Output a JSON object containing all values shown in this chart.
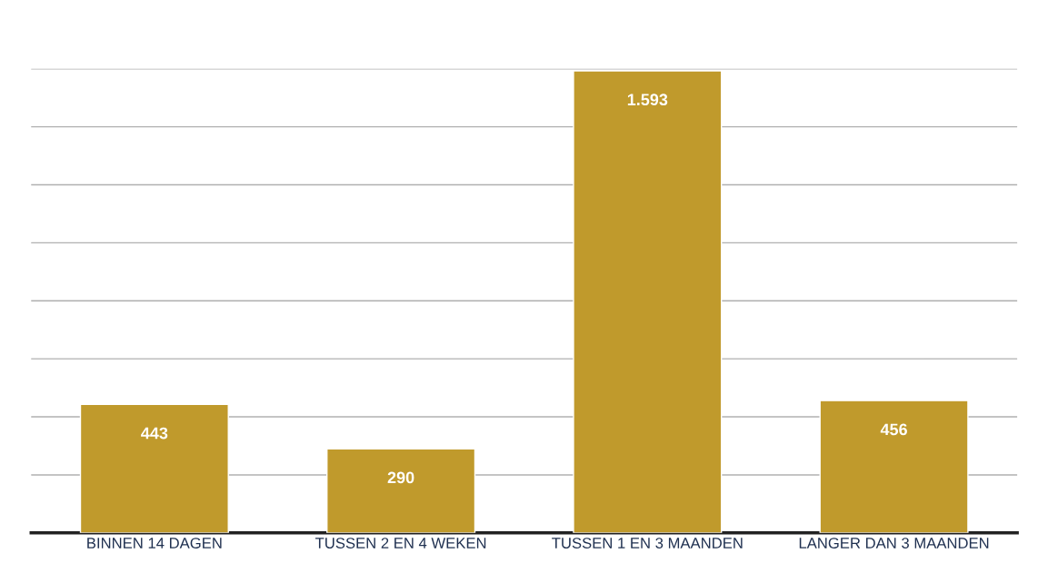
{
  "chart_data": {
    "type": "bar",
    "categories": [
      "BINNEN 14 DAGEN",
      "TUSSEN 2 EN 4 WEKEN",
      "TUSSEN 1 EN 3 MAANDEN",
      "LANGER DAN 3 MAANDEN"
    ],
    "values": [
      443,
      290,
      1593,
      456
    ],
    "value_labels": [
      "443",
      "290",
      "1.593",
      "456"
    ],
    "color": "#c09a2c",
    "ylim": [
      0,
      1600
    ],
    "yticks": [
      {
        "value": 0,
        "label": null
      },
      {
        "value": 200,
        "label": null
      },
      {
        "value": 400,
        "label": null
      },
      {
        "value": 600,
        "label": null
      },
      {
        "value": 800,
        "label": null
      },
      {
        "value": 1000,
        "label": null
      },
      {
        "value": 1200,
        "label": null
      },
      {
        "value": 1400,
        "label": null
      },
      {
        "value": 1600,
        "label": null
      }
    ],
    "grid": "y",
    "tick_labels": "x"
  }
}
